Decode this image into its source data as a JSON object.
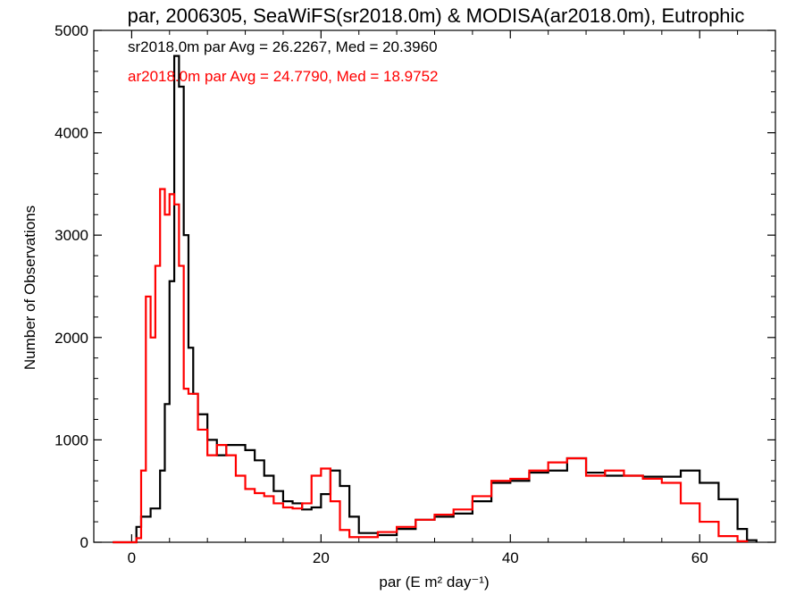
{
  "chart_data": {
    "type": "line",
    "title": "par, 2006305, SeaWiFS(sr2018.0m) & MODISA(ar2018.0m), Eutrophic",
    "xlabel": "par (E m² day⁻¹)",
    "ylabel": "Number of Observations",
    "xlim": [
      -4,
      68
    ],
    "ylim": [
      0,
      5000
    ],
    "x_ticks": [
      0,
      20,
      40,
      60
    ],
    "y_ticks": [
      0,
      1000,
      2000,
      3000,
      4000,
      5000
    ],
    "grid": false,
    "legend_position": "top-left",
    "legend": [
      "sr2018.0m par Avg = 26.2267, Med = 20.3960",
      "ar2018.0m par Avg = 24.7790, Med = 18.9752"
    ],
    "series": [
      {
        "name": "sr2018.0m",
        "color": "#000000",
        "step": "histogram",
        "points": [
          [
            -2,
            0
          ],
          [
            0,
            0
          ],
          [
            0.5,
            150
          ],
          [
            1,
            250
          ],
          [
            2,
            330
          ],
          [
            3,
            700
          ],
          [
            3.5,
            1350
          ],
          [
            4,
            2550
          ],
          [
            4.5,
            4750
          ],
          [
            5,
            4450
          ],
          [
            5.5,
            3000
          ],
          [
            6,
            1900
          ],
          [
            6.5,
            1450
          ],
          [
            7,
            1250
          ],
          [
            8,
            1000
          ],
          [
            9,
            850
          ],
          [
            10,
            950
          ],
          [
            11,
            950
          ],
          [
            12,
            900
          ],
          [
            13,
            800
          ],
          [
            14,
            650
          ],
          [
            15,
            500
          ],
          [
            16,
            400
          ],
          [
            17,
            380
          ],
          [
            18,
            320
          ],
          [
            19,
            340
          ],
          [
            20,
            470
          ],
          [
            21,
            700
          ],
          [
            22,
            550
          ],
          [
            23,
            250
          ],
          [
            24,
            90
          ],
          [
            26,
            70
          ],
          [
            28,
            130
          ],
          [
            30,
            220
          ],
          [
            32,
            250
          ],
          [
            34,
            280
          ],
          [
            36,
            400
          ],
          [
            38,
            580
          ],
          [
            40,
            600
          ],
          [
            42,
            680
          ],
          [
            44,
            700
          ],
          [
            46,
            820
          ],
          [
            48,
            680
          ],
          [
            50,
            650
          ],
          [
            52,
            650
          ],
          [
            54,
            640
          ],
          [
            56,
            640
          ],
          [
            58,
            700
          ],
          [
            60,
            580
          ],
          [
            62,
            420
          ],
          [
            64,
            130
          ],
          [
            65,
            20
          ],
          [
            66,
            0
          ]
        ]
      },
      {
        "name": "ar2018.0m",
        "color": "#ff0000",
        "step": "histogram",
        "points": [
          [
            -2,
            0
          ],
          [
            0,
            0
          ],
          [
            0.5,
            40
          ],
          [
            1,
            700
          ],
          [
            1.5,
            2400
          ],
          [
            2,
            2000
          ],
          [
            2.5,
            2700
          ],
          [
            3,
            3450
          ],
          [
            3.5,
            3200
          ],
          [
            4,
            3400
          ],
          [
            4.5,
            3300
          ],
          [
            5,
            2700
          ],
          [
            5.5,
            1500
          ],
          [
            6,
            1450
          ],
          [
            7,
            1100
          ],
          [
            8,
            850
          ],
          [
            9,
            950
          ],
          [
            10,
            850
          ],
          [
            11,
            650
          ],
          [
            12,
            520
          ],
          [
            13,
            480
          ],
          [
            14,
            450
          ],
          [
            15,
            380
          ],
          [
            16,
            340
          ],
          [
            17,
            330
          ],
          [
            18,
            380
          ],
          [
            19,
            650
          ],
          [
            20,
            720
          ],
          [
            21,
            400
          ],
          [
            22,
            120
          ],
          [
            23,
            50
          ],
          [
            26,
            100
          ],
          [
            28,
            150
          ],
          [
            30,
            220
          ],
          [
            32,
            270
          ],
          [
            34,
            320
          ],
          [
            36,
            450
          ],
          [
            38,
            600
          ],
          [
            40,
            620
          ],
          [
            42,
            700
          ],
          [
            44,
            780
          ],
          [
            46,
            820
          ],
          [
            48,
            650
          ],
          [
            50,
            700
          ],
          [
            52,
            650
          ],
          [
            54,
            620
          ],
          [
            56,
            580
          ],
          [
            58,
            380
          ],
          [
            60,
            200
          ],
          [
            62,
            60
          ],
          [
            64,
            10
          ],
          [
            65,
            0
          ]
        ]
      }
    ]
  }
}
